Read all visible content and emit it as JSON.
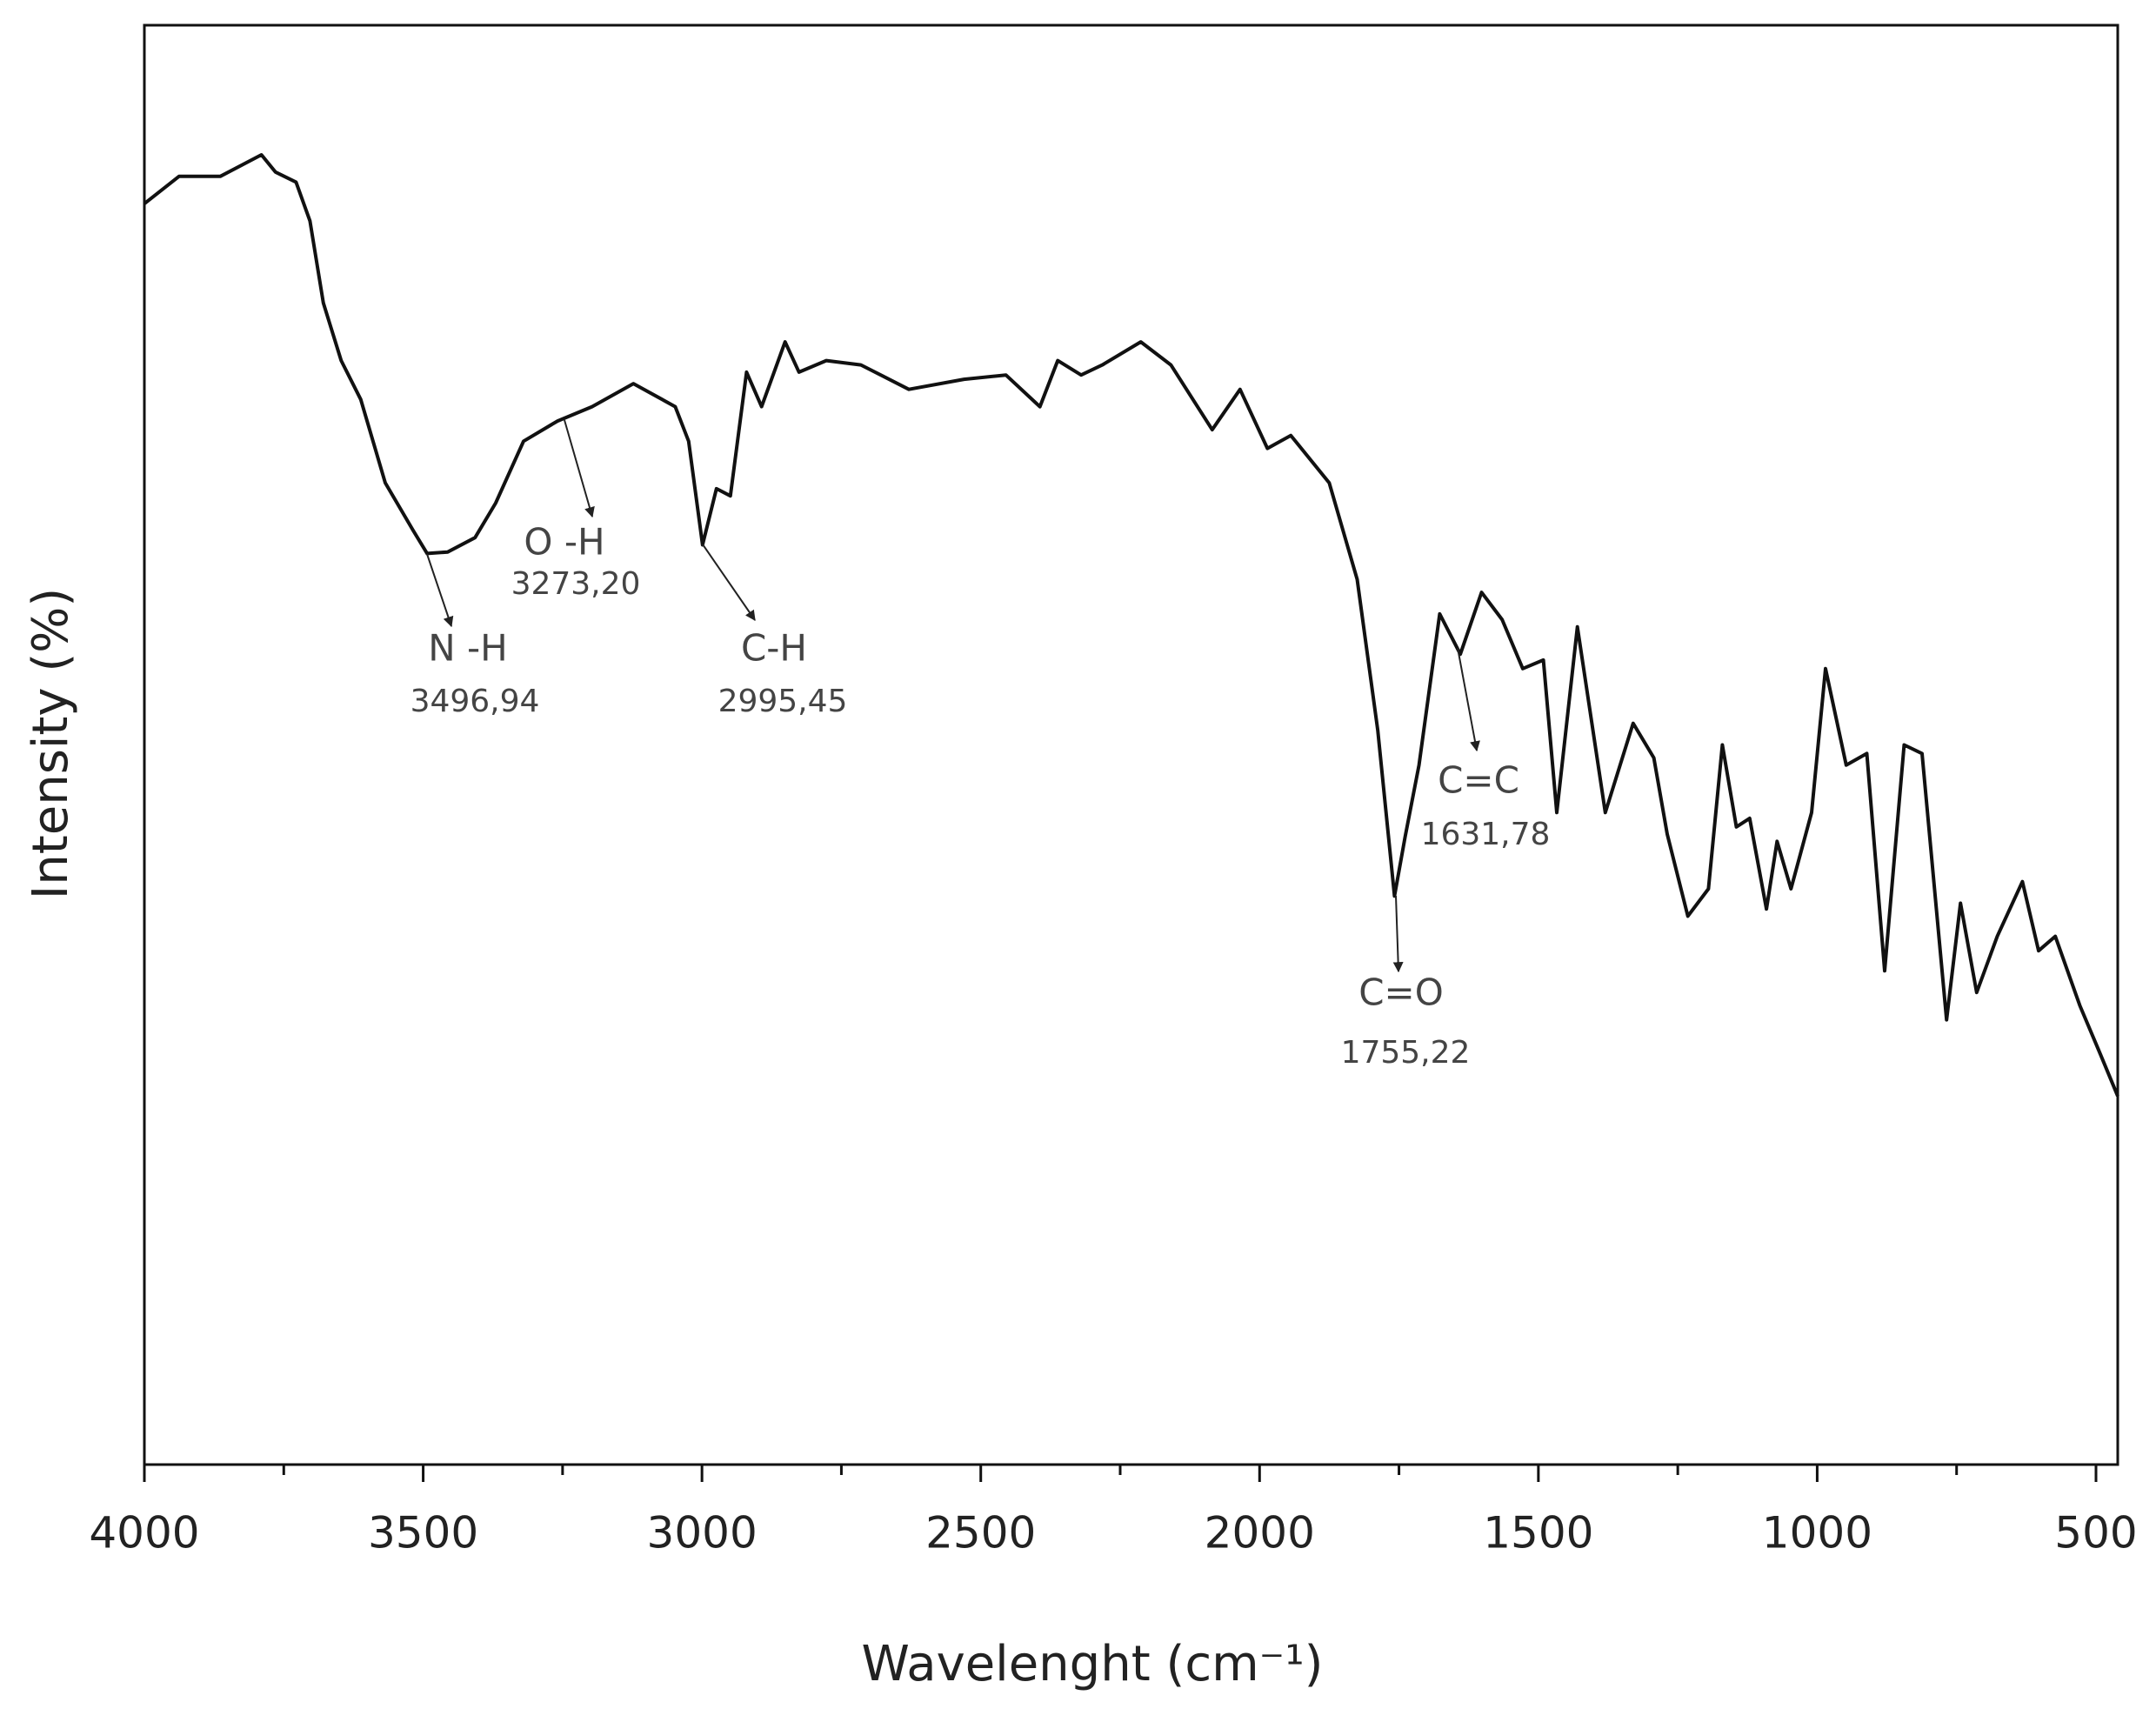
{
  "chart_data": {
    "type": "line",
    "x_label": "Wavelenght (cm⁻¹)",
    "y_label": "Intensity (%)",
    "color": "#111111",
    "xlim": [
      4000,
      461
    ],
    "ylim": [
      0,
      100
    ],
    "xticks": [
      4000,
      3500,
      3000,
      2500,
      2000,
      1500,
      1000,
      500
    ],
    "xminorticks": [
      3750,
      3250,
      2750,
      2250,
      1750,
      1250,
      750
    ],
    "x": [
      4000,
      3938,
      3864,
      3790,
      3765,
      3728,
      3703,
      3679,
      3647,
      3612,
      3568,
      3518,
      3493,
      3456,
      3407,
      3370,
      3320,
      3259,
      3197,
      3123,
      3048,
      3024,
      2999,
      2974,
      2949,
      2920,
      2893,
      2851,
      2826,
      2777,
      2715,
      2629,
      2530,
      2455,
      2394,
      2362,
      2320,
      2282,
      2213,
      2159,
      2085,
      2035,
      1986,
      1944,
      1875,
      1825,
      1788,
      1758,
      1739,
      1714,
      1677,
      1640,
      1602,
      1565,
      1528,
      1491,
      1467,
      1430,
      1380,
      1330,
      1293,
      1269,
      1232,
      1195,
      1170,
      1145,
      1121,
      1091,
      1072,
      1047,
      1010,
      985,
      948,
      911,
      879,
      844,
      812,
      768,
      743,
      714,
      677,
      632,
      603,
      573,
      529,
      492,
      461
    ],
    "values": [
      87.6,
      89.5,
      89.5,
      91.0,
      89.8,
      89.1,
      86.4,
      80.7,
      76.7,
      74.0,
      68.2,
      64.9,
      63.3,
      63.4,
      64.4,
      66.8,
      71.1,
      72.5,
      73.5,
      75.1,
      73.5,
      71.1,
      63.9,
      67.8,
      67.3,
      75.9,
      73.5,
      78.0,
      75.9,
      76.7,
      76.4,
      74.7,
      75.4,
      75.7,
      73.5,
      76.7,
      75.7,
      76.4,
      78.0,
      76.4,
      71.9,
      74.7,
      70.6,
      71.5,
      68.2,
      61.5,
      51.0,
      39.5,
      43.6,
      48.6,
      59.1,
      56.3,
      60.6,
      58.7,
      55.3,
      55.9,
      45.3,
      58.2,
      45.3,
      51.5,
      49.1,
      43.8,
      38.1,
      40.0,
      50.0,
      44.3,
      44.9,
      38.6,
      43.3,
      40.0,
      45.3,
      55.3,
      48.6,
      49.4,
      34.3,
      50.0,
      49.4,
      30.9,
      39.0,
      32.8,
      36.7,
      40.5,
      35.7,
      36.7,
      31.9,
      28.5,
      25.6
    ],
    "annotations": [
      {
        "label": "N -H",
        "value": "3496,94"
      },
      {
        "label": "O -H",
        "value": "3273,20"
      },
      {
        "label": "C-H",
        "value": "2995,45"
      },
      {
        "label": "C=O",
        "value": "1755,22"
      },
      {
        "label": "C=C",
        "value": "1631,78"
      }
    ]
  }
}
